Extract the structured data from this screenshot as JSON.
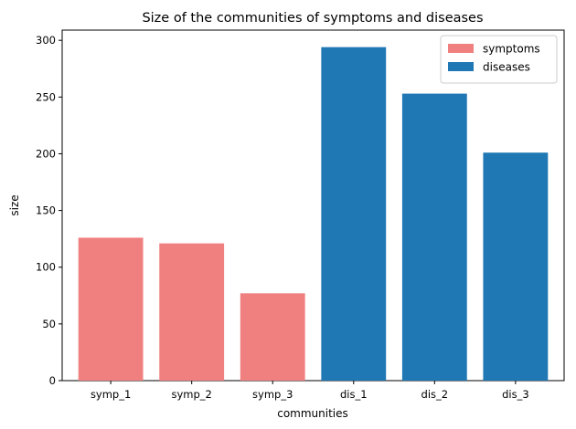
{
  "chart_data": {
    "type": "bar",
    "title": "Size of the communities of symptoms and diseases",
    "xlabel": "communities",
    "ylabel": "size",
    "ylim": [
      0,
      309
    ],
    "yticks": [
      0,
      50,
      100,
      150,
      200,
      250,
      300
    ],
    "grid": false,
    "legend_position": "top-right",
    "categories": [
      "symp_1",
      "symp_2",
      "symp_3",
      "dis_1",
      "dis_2",
      "dis_3"
    ],
    "series": [
      {
        "name": "symptoms",
        "color": "#f08080",
        "points": [
          {
            "category": "symp_1",
            "value": 126
          },
          {
            "category": "symp_2",
            "value": 121
          },
          {
            "category": "symp_3",
            "value": 77
          }
        ]
      },
      {
        "name": "diseases",
        "color": "#1f77b4",
        "points": [
          {
            "category": "dis_1",
            "value": 294
          },
          {
            "category": "dis_2",
            "value": 253
          },
          {
            "category": "dis_3",
            "value": 201
          }
        ]
      }
    ]
  }
}
